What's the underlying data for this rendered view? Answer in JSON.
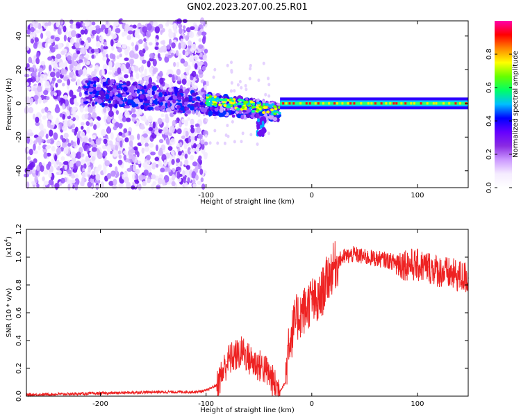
{
  "title": "GN02.2023.207.00.25.R01",
  "spectrogram": {
    "type": "heatmap",
    "xlabel": "Height of straight line (km)",
    "ylabel": "Frequency (Hz)",
    "xlim": [
      -270,
      148
    ],
    "ylim": [
      -50,
      49
    ],
    "xticks": [
      -200,
      -100,
      0,
      100
    ],
    "yticks": [
      -40,
      -20,
      0,
      20,
      40
    ],
    "grid": false,
    "colorbar": {
      "label": "Normalized spectral amplitude",
      "range": [
        0.0,
        1.0
      ],
      "ticks": [
        "0.0",
        "0.2",
        "0.4",
        "0.6",
        "0.8"
      ],
      "colormap": [
        "#ffffff",
        "#f5ecff",
        "#cc99ff",
        "#8a2be2",
        "#6600ff",
        "#0000ff",
        "#00bfff",
        "#00ff66",
        "#66ff00",
        "#ffff00",
        "#ff8800",
        "#ff0000",
        "#ff00aa"
      ]
    },
    "features": {
      "noise_region_x": [
        -270,
        -100
      ],
      "dense_band": {
        "x_start": -215,
        "x_end": -30,
        "freq_start": 8,
        "freq_end": -5
      },
      "dip_feature": {
        "x": -48,
        "freq": -13
      },
      "stable_line": {
        "x_start": -30,
        "x_end": 148,
        "freq": 0
      }
    }
  },
  "chart_data": {
    "type": "line",
    "xlabel": "Height of straight line (km)",
    "ylabel": "SNR (10 * v/v)",
    "yscale_label": "(x10",
    "yscale_exp": "4",
    "xlim": [
      -270,
      148
    ],
    "ylim": [
      0,
      1.2
    ],
    "xticks": [
      -200,
      -100,
      0,
      100
    ],
    "yticks": [
      0.0,
      0.2,
      0.4,
      0.6,
      0.8,
      1.0,
      1.2
    ],
    "color": "#ee2222",
    "series": [
      {
        "x": [
          -270,
          -200,
          -150,
          -110,
          -100,
          -90,
          -85,
          -80,
          -75,
          -70,
          -65,
          -60,
          -55,
          -50,
          -45,
          -40,
          -35,
          -30,
          -25,
          -22,
          -20,
          -15,
          -10,
          -5,
          0,
          5,
          10,
          15,
          20,
          25,
          30,
          40,
          50,
          60,
          70,
          80,
          90,
          100,
          110,
          120,
          130,
          140,
          148
        ],
        "y": [
          0.01,
          0.02,
          0.03,
          0.03,
          0.04,
          0.08,
          0.16,
          0.25,
          0.28,
          0.3,
          0.32,
          0.27,
          0.24,
          0.22,
          0.2,
          0.15,
          0.08,
          0.04,
          0.1,
          0.4,
          0.42,
          0.55,
          0.6,
          0.63,
          0.7,
          0.65,
          0.75,
          0.85,
          0.92,
          0.97,
          1.0,
          1.02,
          1.0,
          0.99,
          0.98,
          0.96,
          0.95,
          0.94,
          0.93,
          0.9,
          0.88,
          0.86,
          0.85
        ]
      }
    ]
  }
}
